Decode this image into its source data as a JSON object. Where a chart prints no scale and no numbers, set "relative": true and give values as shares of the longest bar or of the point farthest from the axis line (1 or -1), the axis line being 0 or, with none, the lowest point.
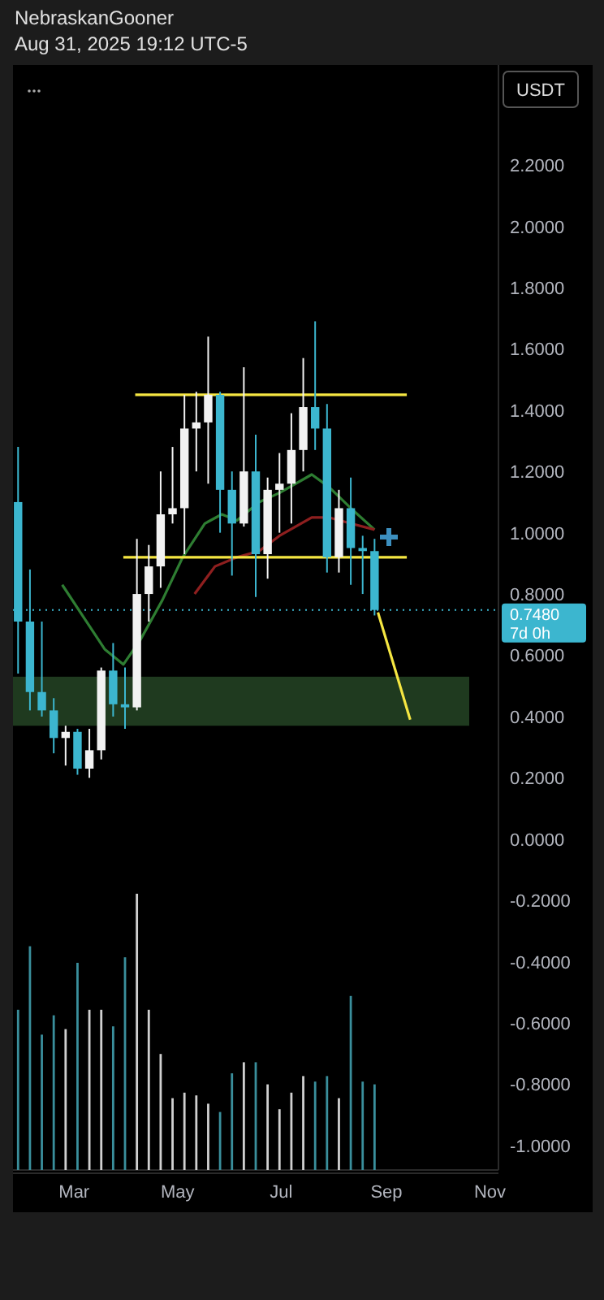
{
  "chart_data": [
    {
      "type": "candlestick",
      "title": "NebraskanGooner",
      "subtitle": "Aug 31, 2025 19:12 UTC-5",
      "annotations": [
        "USDT",
        "7d 0h"
      ],
      "x": [
        "2025-01-27",
        "2025-02-03",
        "2025-02-10",
        "2025-02-17",
        "2025-02-24",
        "2025-03-03",
        "2025-03-10",
        "2025-03-17",
        "2025-03-24",
        "2025-03-31",
        "2025-04-07",
        "2025-04-14",
        "2025-04-21",
        "2025-04-28",
        "2025-05-05",
        "2025-05-12",
        "2025-05-19",
        "2025-05-26",
        "2025-06-02",
        "2025-06-09",
        "2025-06-16",
        "2025-06-23",
        "2025-06-30",
        "2025-07-07",
        "2025-07-14",
        "2025-07-21",
        "2025-07-28",
        "2025-08-04",
        "2025-08-11",
        "2025-08-18",
        "2025-08-25"
      ],
      "ohlc": [
        [
          1.1,
          1.28,
          0.54,
          0.71
        ],
        [
          0.71,
          0.88,
          0.42,
          0.48
        ],
        [
          0.48,
          0.71,
          0.4,
          0.42
        ],
        [
          0.42,
          0.46,
          0.28,
          0.33
        ],
        [
          0.33,
          0.37,
          0.24,
          0.35
        ],
        [
          0.35,
          0.36,
          0.21,
          0.23
        ],
        [
          0.23,
          0.36,
          0.2,
          0.29
        ],
        [
          0.29,
          0.56,
          0.26,
          0.55
        ],
        [
          0.55,
          0.64,
          0.4,
          0.44
        ],
        [
          0.44,
          0.56,
          0.36,
          0.43
        ],
        [
          0.43,
          0.98,
          0.42,
          0.8
        ],
        [
          0.8,
          0.96,
          0.71,
          0.89
        ],
        [
          0.89,
          1.2,
          0.82,
          1.06
        ],
        [
          1.06,
          1.28,
          1.03,
          1.08
        ],
        [
          1.08,
          1.45,
          0.93,
          1.34
        ],
        [
          1.34,
          1.46,
          1.2,
          1.36
        ],
        [
          1.36,
          1.64,
          1.16,
          1.45
        ],
        [
          1.45,
          1.46,
          1.0,
          1.14
        ],
        [
          1.14,
          1.2,
          0.86,
          1.03
        ],
        [
          1.03,
          1.54,
          1.02,
          1.2
        ],
        [
          1.2,
          1.32,
          0.79,
          0.93
        ],
        [
          0.93,
          1.18,
          0.85,
          1.14
        ],
        [
          1.14,
          1.26,
          1.0,
          1.16
        ],
        [
          1.16,
          1.39,
          1.03,
          1.27
        ],
        [
          1.27,
          1.57,
          1.2,
          1.41
        ],
        [
          1.41,
          1.69,
          1.27,
          1.34
        ],
        [
          1.34,
          1.42,
          0.87,
          0.92
        ],
        [
          0.92,
          1.14,
          0.87,
          1.08
        ],
        [
          1.08,
          1.18,
          0.83,
          0.95
        ],
        [
          0.95,
          0.99,
          0.8,
          0.94
        ],
        [
          0.94,
          0.98,
          0.73,
          0.748
        ]
      ],
      "colors": [
        "#3cb6cf",
        "#3cb6cf",
        "#3cb6cf",
        "#3cb6cf",
        "#f2f2f2",
        "#3cb6cf",
        "#f2f2f2",
        "#f2f2f2",
        "#3cb6cf",
        "#3cb6cf",
        "#f2f2f2",
        "#f2f2f2",
        "#f2f2f2",
        "#f2f2f2",
        "#f2f2f2",
        "#f2f2f2",
        "#f2f2f2",
        "#3cb6cf",
        "#3cb6cf",
        "#f2f2f2",
        "#3cb6cf",
        "#f2f2f2",
        "#f2f2f2",
        "#f2f2f2",
        "#f2f2f2",
        "#3cb6cf",
        "#3cb6cf",
        "#f2f2f2",
        "#3cb6cf",
        "#3cb6cf",
        "#3cb6cf"
      ],
      "series": [
        {
          "type": "line",
          "color": "#2e7d32",
          "x": [
            "2025-02-22",
            "2025-03-19",
            "2025-03-30",
            "2025-04-09",
            "2025-04-22",
            "2025-05-04",
            "2025-05-17",
            "2025-05-27",
            "2025-06-05",
            "2025-06-18",
            "2025-06-30",
            "2025-07-19",
            "2025-07-29",
            "2025-08-11",
            "2025-08-25"
          ],
          "values": [
            0.83,
            0.62,
            0.57,
            0.65,
            0.78,
            0.92,
            1.03,
            1.06,
            1.04,
            1.1,
            1.13,
            1.19,
            1.15,
            1.08,
            1.01
          ]
        },
        {
          "type": "line",
          "color": "#8e1f1f",
          "x": [
            "2025-05-11",
            "2025-05-23",
            "2025-06-05",
            "2025-06-18",
            "2025-06-30",
            "2025-07-19",
            "2025-07-29",
            "2025-08-11",
            "2025-08-25"
          ],
          "values": [
            0.8,
            0.89,
            0.92,
            0.94,
            0.99,
            1.05,
            1.05,
            1.03,
            1.01
          ]
        },
        {
          "type": "line",
          "color": "#f5e642",
          "x": [
            "2025-04-06",
            "2025-09-13"
          ],
          "values": [
            1.45,
            1.45
          ]
        },
        {
          "type": "line",
          "color": "#f5e642",
          "x": [
            "2025-03-30",
            "2025-09-13"
          ],
          "values": [
            0.92,
            0.92
          ]
        },
        {
          "type": "line",
          "color": "#f5e642",
          "x": [
            "2025-08-27",
            "2025-09-15"
          ],
          "values": [
            0.74,
            0.39
          ]
        }
      ],
      "bands": [
        {
          "axis": "y",
          "from": 0.37,
          "to": 0.53,
          "color": "#1f3a1f"
        }
      ],
      "ref_lines": [
        {
          "axis": "y",
          "value": 0.748,
          "label": "0.7480",
          "color": "#3cb6cf",
          "line_style": "dotted"
        }
      ],
      "xlim": [
        "2025-01-24",
        "2025-11-06"
      ],
      "xticks": [
        {
          "value": "2025-03-01",
          "label": "Mar"
        },
        {
          "value": "2025-05-01",
          "label": "May"
        },
        {
          "value": "2025-07-01",
          "label": "Jul"
        },
        {
          "value": "2025-09-01",
          "label": "Sep"
        },
        {
          "value": "2025-11-01",
          "label": "Nov"
        }
      ],
      "ylim": [
        -1.08,
        2.5
      ],
      "yticks": [
        {
          "value": 2.2,
          "label": "2.2000"
        },
        {
          "value": 2.0,
          "label": "2.0000"
        },
        {
          "value": 1.8,
          "label": "1.8000"
        },
        {
          "value": 1.6,
          "label": "1.6000"
        },
        {
          "value": 1.4,
          "label": "1.4000"
        },
        {
          "value": 1.2,
          "label": "1.2000"
        },
        {
          "value": 1.0,
          "label": "1.0000"
        },
        {
          "value": 0.8,
          "label": "0.8000"
        },
        {
          "value": 0.6,
          "label": "0.6000"
        },
        {
          "value": 0.4,
          "label": "0.4000"
        },
        {
          "value": 0.2,
          "label": "0.2000"
        },
        {
          "value": 0,
          "label": "0.0000"
        },
        {
          "value": -0.2,
          "label": "-0.2000"
        },
        {
          "value": -0.4,
          "label": "-0.4000"
        },
        {
          "value": -0.6,
          "label": "-0.6000"
        },
        {
          "value": -0.8,
          "label": "-0.8000"
        },
        {
          "value": -1.0,
          "label": "-1.0000"
        }
      ],
      "grid": false
    },
    {
      "type": "bar",
      "relative": true,
      "xlim": [
        "2025-01-24",
        "2025-11-06"
      ],
      "x": [
        "2025-01-27",
        "2025-02-03",
        "2025-02-10",
        "2025-02-17",
        "2025-02-24",
        "2025-03-03",
        "2025-03-10",
        "2025-03-17",
        "2025-03-24",
        "2025-03-31",
        "2025-04-07",
        "2025-04-14",
        "2025-04-21",
        "2025-04-28",
        "2025-05-05",
        "2025-05-12",
        "2025-05-19",
        "2025-05-26",
        "2025-06-02",
        "2025-06-09",
        "2025-06-16",
        "2025-06-23",
        "2025-06-30",
        "2025-07-07",
        "2025-07-14",
        "2025-07-21",
        "2025-07-28",
        "2025-08-04",
        "2025-08-11",
        "2025-08-18",
        "2025-08-25"
      ],
      "values": [
        0.58,
        0.81,
        0.49,
        0.56,
        0.51,
        0.75,
        0.58,
        0.58,
        0.52,
        0.77,
        1,
        0.58,
        0.42,
        0.26,
        0.28,
        0.27,
        0.24,
        0.21,
        0.35,
        0.39,
        0.39,
        0.31,
        0.22,
        0.28,
        0.34,
        0.32,
        0.34,
        0.26,
        0.63,
        0.32,
        0.31
      ],
      "colors": [
        "#3a8f9c",
        "#3a8f9c",
        "#3a8f9c",
        "#3a8f9c",
        "#d0d0d0",
        "#3a8f9c",
        "#d0d0d0",
        "#d0d0d0",
        "#3a8f9c",
        "#3a8f9c",
        "#d0d0d0",
        "#d0d0d0",
        "#d0d0d0",
        "#d0d0d0",
        "#d0d0d0",
        "#d0d0d0",
        "#d0d0d0",
        "#3a8f9c",
        "#3a8f9c",
        "#d0d0d0",
        "#3a8f9c",
        "#d0d0d0",
        "#d0d0d0",
        "#d0d0d0",
        "#d0d0d0",
        "#3a8f9c",
        "#3a8f9c",
        "#d0d0d0",
        "#3a8f9c",
        "#3a8f9c",
        "#3a8f9c"
      ]
    }
  ]
}
